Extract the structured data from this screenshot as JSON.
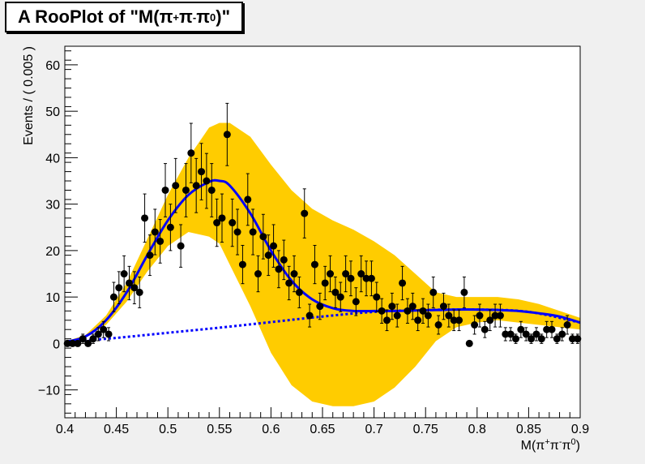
{
  "title": {
    "prefix": "A RooPlot of \"M(π",
    "sup1": "+",
    "mid1": "π",
    "sup2": "-",
    "mid2": "π",
    "sup3": "0",
    "suffix": ")\""
  },
  "colors": {
    "band": "#ffcc00",
    "curve": "#0000ff",
    "points": "#000000",
    "frame_bg": "#ffffff",
    "canvas_bg": "#f0f0f0"
  },
  "chart_data": {
    "type": "scatter",
    "ylabel": "Events / ( 0.005 )",
    "xlabel": "M(π⁺π⁻π⁰)",
    "xlim": [
      0.4,
      0.9
    ],
    "ylim": [
      -16,
      64
    ],
    "x_ticks": [
      "0.4",
      "0.45",
      "0.5",
      "0.55",
      "0.6",
      "0.65",
      "0.7",
      "0.75",
      "0.8",
      "0.85",
      "0.9"
    ],
    "y_ticks": [
      "−10",
      "0",
      "10",
      "20",
      "30",
      "40",
      "50",
      "60"
    ],
    "grid": false,
    "legend": "none",
    "data_points": {
      "x": [
        0.4025,
        0.4075,
        0.4125,
        0.4175,
        0.4225,
        0.4275,
        0.4325,
        0.4375,
        0.4425,
        0.4475,
        0.4525,
        0.4575,
        0.4625,
        0.4675,
        0.4725,
        0.4775,
        0.4825,
        0.4875,
        0.4925,
        0.4975,
        0.5025,
        0.5075,
        0.5125,
        0.5175,
        0.5225,
        0.5275,
        0.5325,
        0.5375,
        0.5425,
        0.5475,
        0.5525,
        0.5575,
        0.5625,
        0.5675,
        0.5725,
        0.5775,
        0.5825,
        0.5875,
        0.5925,
        0.5975,
        0.6025,
        0.6075,
        0.6125,
        0.6175,
        0.6225,
        0.6275,
        0.6325,
        0.6375,
        0.6425,
        0.6475,
        0.6525,
        0.6575,
        0.6625,
        0.6675,
        0.6725,
        0.6775,
        0.6825,
        0.6875,
        0.6925,
        0.6975,
        0.7025,
        0.7075,
        0.7125,
        0.7175,
        0.7225,
        0.7275,
        0.7325,
        0.7375,
        0.7425,
        0.7475,
        0.7525,
        0.7575,
        0.7625,
        0.7675,
        0.7725,
        0.7775,
        0.7825,
        0.7875,
        0.7925,
        0.7975,
        0.8025,
        0.8075,
        0.8125,
        0.8175,
        0.8225,
        0.8275,
        0.8325,
        0.8375,
        0.8425,
        0.8475,
        0.8525,
        0.8575,
        0.8625,
        0.8675,
        0.8725,
        0.8775,
        0.8825,
        0.8875,
        0.8925,
        0.8975
      ],
      "y": [
        0,
        0,
        0,
        1,
        0,
        1,
        2,
        3,
        2,
        10,
        12,
        15,
        13,
        12,
        11,
        27,
        19,
        24,
        22,
        33,
        25,
        34,
        21,
        33,
        41,
        34,
        37,
        35,
        33,
        26,
        27,
        45,
        26,
        24,
        17,
        31,
        24,
        15,
        23,
        19,
        21,
        16,
        18,
        13,
        15,
        11,
        28,
        6,
        17,
        8,
        13,
        15,
        11,
        10,
        15,
        14,
        9,
        15,
        14,
        14,
        10,
        7,
        5,
        8,
        6,
        13,
        7,
        8,
        5,
        7,
        6,
        11,
        4,
        8,
        6,
        5,
        5,
        11,
        0,
        4,
        6,
        3,
        5,
        6,
        6,
        2,
        2,
        1,
        3,
        2,
        1,
        2,
        1,
        3,
        3,
        1,
        2,
        4,
        1,
        1
      ],
      "error_rule": "sqrt(N)"
    },
    "series": [
      {
        "name": "",
        "role": "total model curve",
        "x": [
          0.4,
          0.42,
          0.44,
          0.46,
          0.48,
          0.5,
          0.52,
          0.54,
          0.55,
          0.56,
          0.58,
          0.6,
          0.62,
          0.64,
          0.66,
          0.68,
          0.7,
          0.72,
          0.74,
          0.76,
          0.78,
          0.8,
          0.82,
          0.84,
          0.86,
          0.88,
          0.9
        ],
        "y": [
          0.3,
          1.5,
          5.0,
          11.0,
          19.0,
          26.5,
          32.0,
          34.8,
          35.0,
          34.0,
          28.0,
          20.0,
          13.5,
          9.5,
          7.6,
          7.0,
          7.0,
          7.0,
          7.1,
          7.2,
          7.3,
          7.3,
          7.2,
          7.0,
          6.5,
          5.8,
          4.5
        ]
      },
      {
        "name": "",
        "role": "background component (dashed)",
        "x": [
          0.4,
          0.45,
          0.5,
          0.55,
          0.6,
          0.65,
          0.7,
          0.75,
          0.8,
          0.85,
          0.9
        ],
        "y": [
          0.3,
          1.2,
          2.3,
          3.4,
          4.6,
          5.8,
          6.8,
          7.2,
          7.3,
          6.8,
          4.5
        ]
      },
      {
        "name": "",
        "role": "error band",
        "x": [
          0.4,
          0.42,
          0.44,
          0.46,
          0.48,
          0.5,
          0.52,
          0.54,
          0.55,
          0.56,
          0.58,
          0.6,
          0.62,
          0.64,
          0.66,
          0.68,
          0.7,
          0.72,
          0.74,
          0.76,
          0.78,
          0.8,
          0.82,
          0.84,
          0.86,
          0.88,
          0.9
        ],
        "upper": [
          0.4,
          1.8,
          6.0,
          13.0,
          22.5,
          32.0,
          40.0,
          46.5,
          47.5,
          47.5,
          44.5,
          38.5,
          33.0,
          29.0,
          26.5,
          24.5,
          22.0,
          19.0,
          15.0,
          11.0,
          10.0,
          10.0,
          10.0,
          9.5,
          8.5,
          7.0,
          5.5
        ],
        "lower": [
          0.2,
          1.2,
          4.0,
          9.0,
          15.5,
          21.0,
          24.0,
          23.0,
          21.5,
          17.0,
          8.0,
          -2.0,
          -9.0,
          -12.5,
          -13.5,
          -13.5,
          -12.5,
          -9.5,
          -5.0,
          0.5,
          3.5,
          4.5,
          5.0,
          4.5,
          4.0,
          3.5,
          3.0
        ]
      }
    ]
  }
}
